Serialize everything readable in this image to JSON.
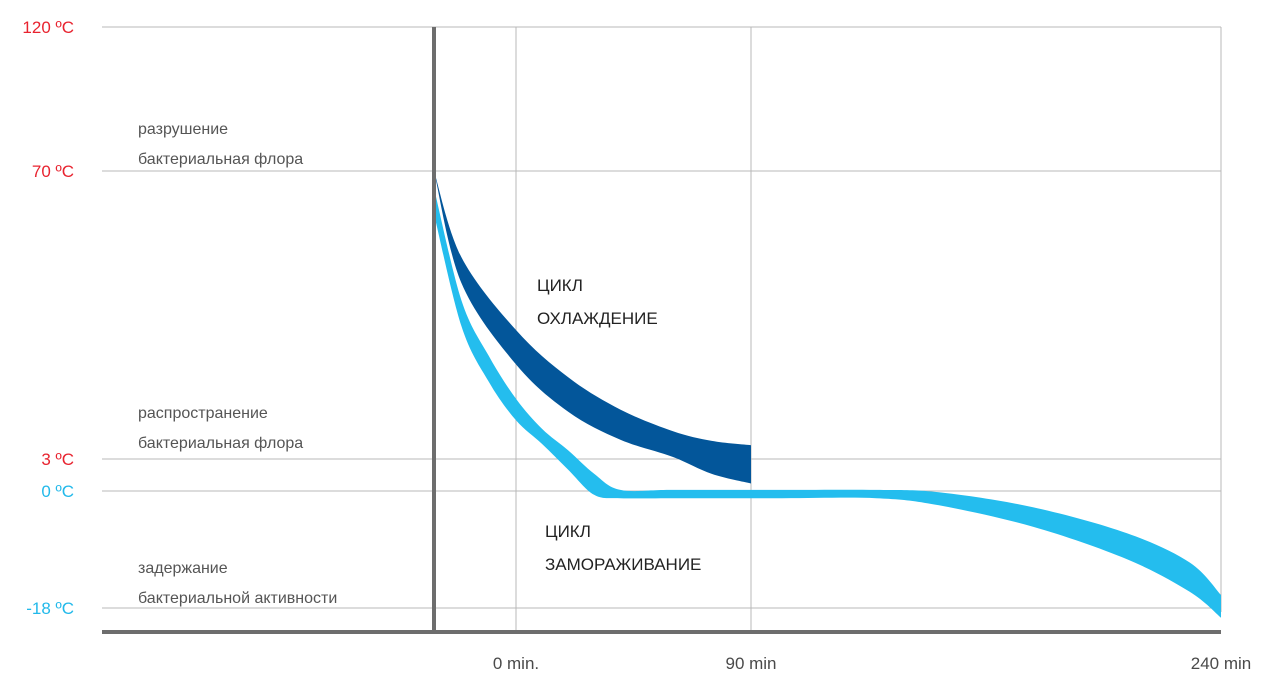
{
  "chart_data": {
    "type": "area",
    "y_ticks": [
      {
        "value": 120,
        "label": "120 ºC",
        "color": "#e8232f"
      },
      {
        "value": 70,
        "label": "70 ºC",
        "color": "#e8232f"
      },
      {
        "value": 3,
        "label": "3 ºC",
        "color": "#e8232f"
      },
      {
        "value": 0,
        "label": "0 ºC",
        "color": "#22b9ea"
      },
      {
        "value": -18,
        "label": "-18 ºC",
        "color": "#22b9ea"
      }
    ],
    "x_ticks": [
      {
        "value": 0,
        "label": "0 min."
      },
      {
        "value": 90,
        "label": "90 min"
      },
      {
        "value": 240,
        "label": "240 min"
      }
    ],
    "zones": [
      {
        "lines": [
          "разрушение",
          "бактериальная флора"
        ]
      },
      {
        "lines": [
          "распространение",
          "бактериальная флора"
        ]
      },
      {
        "lines": [
          "задержание",
          "бактериальной активности"
        ]
      }
    ],
    "cycles": [
      {
        "lines": [
          "ЦИКЛ",
          "ОХЛАЖДЕНИЕ"
        ]
      },
      {
        "lines": [
          "ЦИКЛ",
          "ЗАМОРАЖИВАНИЕ"
        ]
      }
    ],
    "series": [
      {
        "color": "#03569a",
        "start_minute": -30,
        "end_minute": 90,
        "upper": [
          [
            -30,
            70
          ],
          [
            -20,
            50
          ],
          [
            0,
            33
          ],
          [
            20,
            22
          ],
          [
            40,
            14.5
          ],
          [
            60,
            9.5
          ],
          [
            75,
            7.2
          ],
          [
            90,
            6.2
          ]
        ],
        "lower": [
          [
            -30,
            70
          ],
          [
            -20,
            44
          ],
          [
            0,
            25
          ],
          [
            20,
            14
          ],
          [
            40,
            7.5
          ],
          [
            60,
            3.5
          ],
          [
            75,
            1.6
          ],
          [
            90,
            0.7
          ]
        ]
      },
      {
        "color": "#24bdee",
        "start_minute": -30,
        "end_minute": 240,
        "upper": [
          [
            -30,
            66
          ],
          [
            -20,
            40
          ],
          [
            -10,
            27
          ],
          [
            0,
            17
          ],
          [
            10,
            10
          ],
          [
            20,
            5
          ],
          [
            30,
            1.6
          ],
          [
            40,
            0.1
          ],
          [
            60,
            0.1
          ],
          [
            100,
            0.1
          ],
          [
            130,
            0.1
          ],
          [
            150,
            -0.2
          ],
          [
            180,
            -2.5
          ],
          [
            210,
            -6.5
          ],
          [
            230,
            -11
          ],
          [
            240,
            -16
          ]
        ],
        "lower": [
          [
            -30,
            60
          ],
          [
            -20,
            34
          ],
          [
            -10,
            21
          ],
          [
            0,
            12
          ],
          [
            10,
            6.5
          ],
          [
            20,
            2
          ],
          [
            30,
            -0.6
          ],
          [
            40,
            -1.1
          ],
          [
            60,
            -1.1
          ],
          [
            100,
            -1.1
          ],
          [
            130,
            -1.1
          ],
          [
            150,
            -2.2
          ],
          [
            180,
            -5.5
          ],
          [
            210,
            -10.5
          ],
          [
            230,
            -15.5
          ],
          [
            240,
            -19.5
          ]
        ]
      }
    ]
  }
}
